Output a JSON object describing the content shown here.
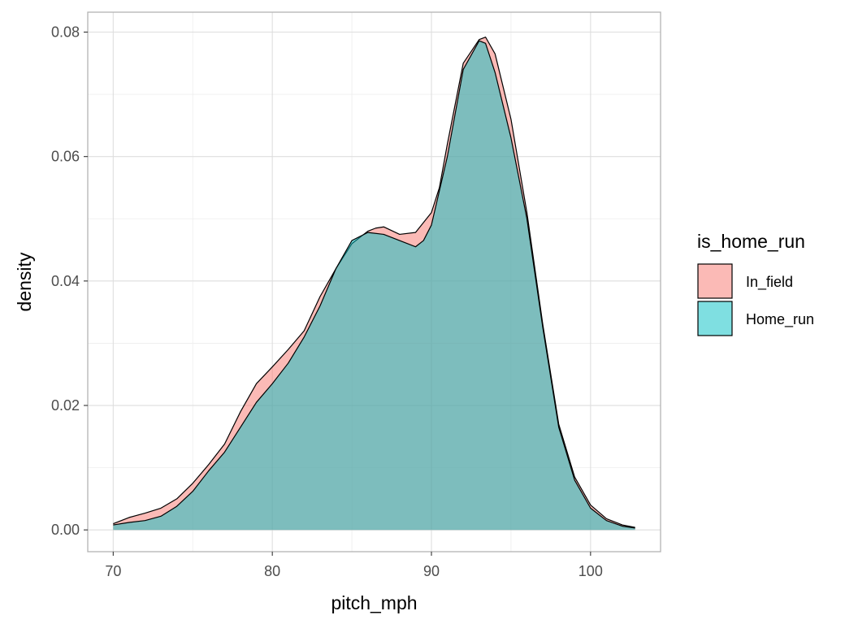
{
  "chart_data": {
    "type": "area",
    "title": "",
    "xlabel": "pitch_mph",
    "ylabel": "density",
    "xlim": [
      68.4,
      104.4
    ],
    "ylim": [
      -0.0035,
      0.0832
    ],
    "x_ticks": [
      70,
      80,
      90,
      100
    ],
    "x_tick_labels": [
      "70",
      "80",
      "90",
      "100"
    ],
    "y_ticks": [
      0.0,
      0.02,
      0.04,
      0.06,
      0.08
    ],
    "y_tick_labels": [
      "0.00",
      "0.02",
      "0.04",
      "0.06",
      "0.08"
    ],
    "grid": true,
    "legend_title": "is_home_run",
    "legend_position": "right",
    "series": [
      {
        "name": "In_field",
        "color": "#F8766D",
        "x": [
          70.0,
          71.0,
          72.0,
          73.0,
          74.0,
          75.0,
          76.0,
          77.0,
          78.0,
          79.0,
          80.0,
          81.0,
          82.0,
          83.0,
          84.0,
          85.0,
          86.0,
          86.5,
          87.0,
          88.0,
          89.0,
          90.0,
          90.5,
          91.0,
          92.0,
          93.0,
          93.4,
          94.0,
          95.0,
          96.0,
          97.0,
          98.0,
          99.0,
          100.0,
          101.0,
          102.0,
          102.8
        ],
        "y": [
          0.001,
          0.002,
          0.0027,
          0.0035,
          0.005,
          0.0075,
          0.0105,
          0.0138,
          0.019,
          0.0235,
          0.0262,
          0.029,
          0.032,
          0.0375,
          0.042,
          0.046,
          0.048,
          0.0485,
          0.0487,
          0.0475,
          0.0478,
          0.051,
          0.055,
          0.062,
          0.075,
          0.0788,
          0.0792,
          0.0765,
          0.066,
          0.051,
          0.033,
          0.017,
          0.0085,
          0.004,
          0.0018,
          0.0008,
          0.0004
        ]
      },
      {
        "name": "Home_run",
        "color": "#00BFC4",
        "x": [
          70.0,
          71.0,
          72.0,
          73.0,
          74.0,
          75.0,
          76.0,
          77.0,
          78.0,
          79.0,
          80.0,
          81.0,
          82.0,
          83.0,
          84.0,
          85.0,
          86.0,
          87.0,
          88.0,
          89.0,
          89.5,
          90.0,
          91.0,
          92.0,
          93.0,
          93.4,
          94.0,
          95.0,
          96.0,
          97.0,
          98.0,
          99.0,
          100.0,
          101.0,
          102.0,
          102.8
        ],
        "y": [
          0.0008,
          0.0012,
          0.0015,
          0.0022,
          0.0038,
          0.0062,
          0.0095,
          0.0125,
          0.0165,
          0.0205,
          0.0235,
          0.0268,
          0.031,
          0.036,
          0.042,
          0.0465,
          0.0478,
          0.0475,
          0.0465,
          0.0455,
          0.0465,
          0.049,
          0.06,
          0.074,
          0.0786,
          0.0782,
          0.0735,
          0.063,
          0.05,
          0.0325,
          0.0165,
          0.008,
          0.0035,
          0.0015,
          0.0006,
          0.0003
        ]
      }
    ]
  }
}
